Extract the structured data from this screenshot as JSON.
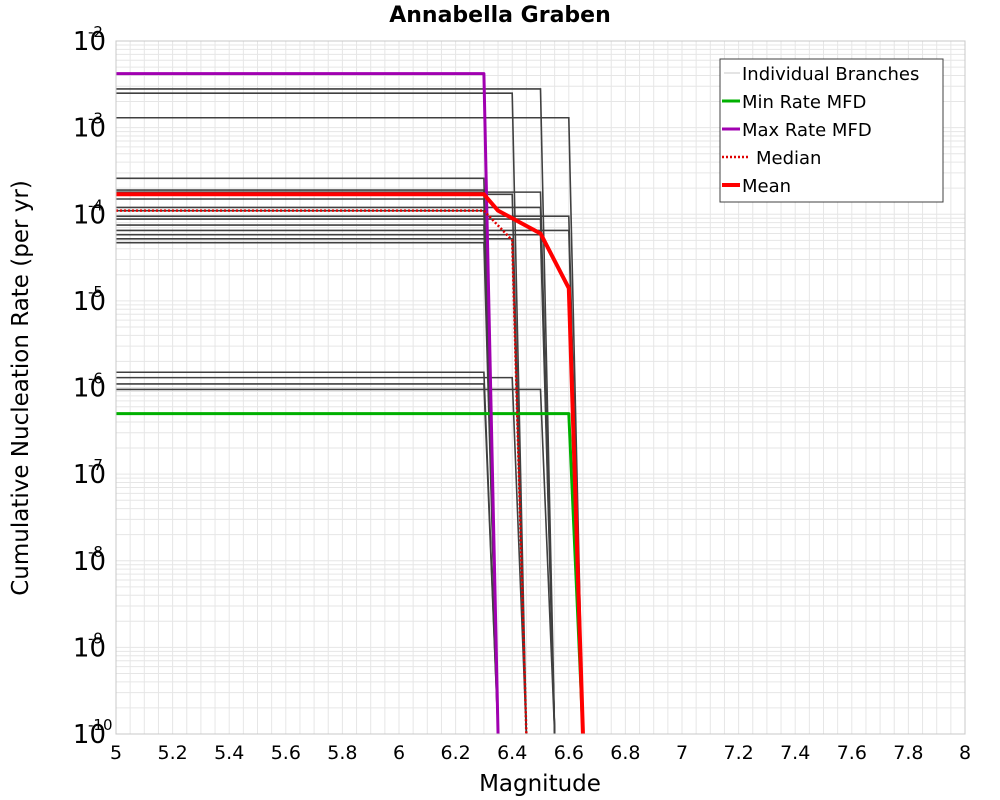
{
  "chart_data": {
    "type": "line",
    "title": "Annabella Graben",
    "xlabel": "Magnitude",
    "ylabel": "Cumulative Nucleation Rate (per yr)",
    "xlim": [
      5,
      8
    ],
    "ylim": [
      1e-10,
      0.01
    ],
    "yscale": "log",
    "grid": true,
    "legend_position": "top-right",
    "x_ticks": [
      "5",
      "5.2",
      "5.4",
      "5.6",
      "5.8",
      "6",
      "6.2",
      "6.4",
      "6.6",
      "6.8",
      "7",
      "7.2",
      "7.4",
      "7.6",
      "7.8",
      "8"
    ],
    "y_ticks": [
      {
        "base": "10",
        "exp": "-2"
      },
      {
        "base": "10",
        "exp": "-3"
      },
      {
        "base": "10",
        "exp": "-4"
      },
      {
        "base": "10",
        "exp": "-5"
      },
      {
        "base": "10",
        "exp": "-6"
      },
      {
        "base": "10",
        "exp": "-7"
      },
      {
        "base": "10",
        "exp": "-8"
      },
      {
        "base": "10",
        "exp": "-9"
      },
      {
        "base": "10",
        "exp": "-10"
      }
    ],
    "legend": [
      "Individual Branches",
      "Min Rate MFD",
      "Max Rate MFD",
      "Median",
      "Mean"
    ],
    "colors": {
      "branches": "#404040",
      "min": "#00b000",
      "max": "#a000b0",
      "median": "#e00000",
      "mean": "#ff0000",
      "grid": "#e6e6e6",
      "frame": "#c8c8c8"
    },
    "branches": [
      {
        "rate": 0.0028,
        "mmax": 6.5
      },
      {
        "rate": 0.0025,
        "mmax": 6.4
      },
      {
        "rate": 0.0013,
        "mmax": 6.6
      },
      {
        "rate": 0.00026,
        "mmax": 6.3
      },
      {
        "rate": 0.00019,
        "mmax": 6.3
      },
      {
        "rate": 0.00018,
        "mmax": 6.5
      },
      {
        "rate": 0.00017,
        "mmax": 6.4
      },
      {
        "rate": 0.00015,
        "mmax": 6.3
      },
      {
        "rate": 0.00012,
        "mmax": 6.5
      },
      {
        "rate": 0.00011,
        "mmax": 6.3
      },
      {
        "rate": 9.5e-05,
        "mmax": 6.6
      },
      {
        "rate": 8.8e-05,
        "mmax": 6.5
      },
      {
        "rate": 7.5e-05,
        "mmax": 6.3
      },
      {
        "rate": 6.5e-05,
        "mmax": 6.6
      },
      {
        "rate": 5.8e-05,
        "mmax": 6.5
      },
      {
        "rate": 5.2e-05,
        "mmax": 6.4
      },
      {
        "rate": 4.7e-05,
        "mmax": 6.3
      },
      {
        "rate": 1.5e-06,
        "mmax": 6.3
      },
      {
        "rate": 1.3e-06,
        "mmax": 6.4
      },
      {
        "rate": 1.1e-06,
        "mmax": 6.3
      },
      {
        "rate": 9.5e-07,
        "mmax": 6.5
      }
    ],
    "series": [
      {
        "name": "Min Rate MFD",
        "x": [
          5,
          6.6,
          6.65
        ],
        "y": [
          5e-07,
          5e-07,
          1e-10
        ]
      },
      {
        "name": "Max Rate MFD",
        "x": [
          5,
          6.3,
          6.35
        ],
        "y": [
          0.0042,
          0.0042,
          1e-10
        ]
      },
      {
        "name": "Median",
        "x": [
          5,
          6.3,
          6.4,
          6.45
        ],
        "y": [
          0.00011,
          0.00011,
          5e-05,
          1e-10
        ]
      },
      {
        "name": "Mean",
        "x": [
          5,
          6.3,
          6.35,
          6.4,
          6.5,
          6.6,
          6.65
        ],
        "y": [
          0.00017,
          0.00017,
          0.00011,
          9e-05,
          6e-05,
          1.4e-05,
          1e-10
        ]
      }
    ]
  }
}
